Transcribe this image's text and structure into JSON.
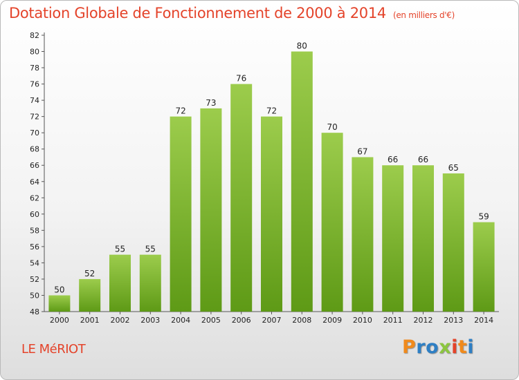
{
  "header": {
    "title": "Dotation Globale de Fonctionnement de 2000 à 2014",
    "subtitle": "(en milliers d'€)"
  },
  "footer": {
    "commune": "LE MéRIOT",
    "logo": "Proxiti",
    "logo_colors": [
      "#f08a1c",
      "#2e7fc4",
      "#2e7fc4",
      "#8cc63f",
      "#e4432a",
      "#f08a1c",
      "#2e7fc4"
    ]
  },
  "colors": {
    "title": "#e4432a",
    "bar_light": "#9ccc4c",
    "bar_dark": "#5e9a16"
  },
  "chart_data": {
    "type": "bar",
    "title": "Dotation Globale de Fonctionnement de 2000 à 2014",
    "subtitle": "(en milliers d'€)",
    "categories": [
      "2000",
      "2001",
      "2002",
      "2003",
      "2004",
      "2005",
      "2006",
      "2007",
      "2008",
      "2009",
      "2010",
      "2011",
      "2012",
      "2013",
      "2014"
    ],
    "values": [
      50,
      52,
      55,
      55,
      72,
      73,
      76,
      72,
      80,
      70,
      67,
      66,
      66,
      65,
      59
    ],
    "ylim": [
      48,
      82
    ],
    "yticks": [
      48,
      50,
      52,
      54,
      56,
      58,
      60,
      62,
      64,
      66,
      68,
      70,
      72,
      74,
      76,
      78,
      80,
      82
    ],
    "xlabel": "",
    "ylabel": "",
    "grid": false,
    "data_labels": true
  }
}
